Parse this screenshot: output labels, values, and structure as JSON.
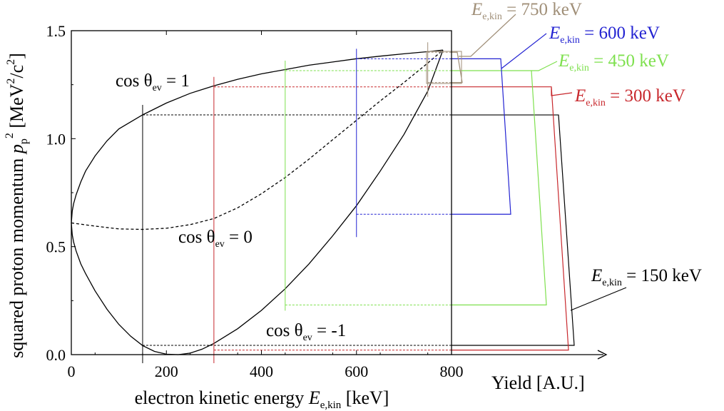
{
  "chart_data": [
    {
      "type": "line",
      "title": "",
      "xlabel_prefix": "electron kinetic energy ",
      "xlabel_var": "E",
      "xlabel_sub": "e,kin",
      "xlabel_unit": " [keV]",
      "ylabel_prefix": "squared proton momentum ",
      "ylabel_var": "p",
      "ylabel_sub": "p",
      "ylabel_sup": "2",
      "ylabel_unit_a": " [MeV",
      "ylabel_unit_b": "/c",
      "ylabel_unit_c": "]",
      "xlim": [
        0,
        800
      ],
      "ylim": [
        0,
        1.5
      ],
      "xticks": [
        0,
        200,
        400,
        600,
        800
      ],
      "yticks": [
        0.0,
        0.5,
        1.0,
        1.5
      ],
      "ytick_labels": [
        "0.0",
        "0.5",
        "1.0",
        "1.5"
      ],
      "grid": false,
      "series": [
        {
          "name": "cos θev = 1",
          "style": "solid",
          "color": "#000000",
          "x": [
            0,
            2,
            5,
            10,
            20,
            30,
            50,
            75,
            100,
            150,
            200,
            250,
            300,
            350,
            400,
            450,
            500,
            550,
            600,
            650,
            700,
            750,
            782
          ],
          "y": [
            0.61,
            0.665,
            0.7,
            0.74,
            0.8,
            0.85,
            0.92,
            0.99,
            1.045,
            1.11,
            1.165,
            1.21,
            1.245,
            1.275,
            1.3,
            1.32,
            1.34,
            1.355,
            1.37,
            1.382,
            1.393,
            1.403,
            1.41
          ]
        },
        {
          "name": "cos θev = 0",
          "style": "dashed",
          "color": "#000000",
          "x": [
            0,
            50,
            100,
            150,
            200,
            250,
            300,
            350,
            400,
            450,
            500,
            550,
            600,
            650,
            700,
            750,
            782
          ],
          "y": [
            0.61,
            0.595,
            0.582,
            0.58,
            0.585,
            0.602,
            0.63,
            0.68,
            0.745,
            0.82,
            0.905,
            0.995,
            1.085,
            1.175,
            1.26,
            1.35,
            1.41
          ]
        },
        {
          "name": "cos θev = -1",
          "style": "solid",
          "color": "#000000",
          "x": [
            0,
            2,
            5,
            10,
            20,
            30,
            50,
            75,
            100,
            125,
            150,
            175,
            200,
            225,
            250,
            275,
            300,
            350,
            400,
            450,
            500,
            550,
            600,
            650,
            700,
            750,
            782
          ],
          "y": [
            0.61,
            0.555,
            0.52,
            0.48,
            0.42,
            0.375,
            0.295,
            0.21,
            0.14,
            0.085,
            0.042,
            0.015,
            0.002,
            0.0,
            0.007,
            0.025,
            0.052,
            0.12,
            0.205,
            0.305,
            0.42,
            0.55,
            0.69,
            0.85,
            1.02,
            1.22,
            1.41
          ]
        }
      ],
      "energy_markers": [
        {
          "label_value": "150 keV",
          "energy": 150,
          "color": "#000000",
          "p_low": 0.043,
          "p_high": 1.11,
          "yield_low_x": 805,
          "yield_high_x": 783
        },
        {
          "label_value": "300 keV",
          "energy": 300,
          "color": "#c8282d",
          "p_low": 0.021,
          "p_high": 1.24,
          "yield_low_x": 797,
          "yield_high_x": 773
        },
        {
          "label_value": "450 keV",
          "energy": 450,
          "color": "#7ee04e",
          "p_low": 0.23,
          "p_high": 1.315,
          "yield_low_x": 766,
          "yield_high_x": 745
        },
        {
          "label_value": "600 keV",
          "energy": 600,
          "color": "#2323d2",
          "p_low": 0.65,
          "p_high": 1.37,
          "yield_low_x": 716,
          "yield_high_x": 702
        },
        {
          "label_value": "750 keV",
          "energy": 750,
          "color": "#a08f78",
          "p_low": 1.26,
          "p_high": 1.4,
          "yield_low_x": 648,
          "yield_high_x": 641
        }
      ],
      "annotations": {
        "cos_prefix": "cos θ",
        "cos_sub": "ev",
        "cos1_suffix": " = 1",
        "cos0_suffix": " = 0",
        "cosm1_suffix": " = -1",
        "e_var": "E",
        "e_sub": "e,kin",
        "e_eq": " = "
      }
    },
    {
      "type": "line",
      "xlabel": "Yield [A.U.]",
      "grid": false
    }
  ],
  "colors": {
    "e150": "#000000",
    "e300": "#c8282d",
    "e450": "#7ee04e",
    "e600": "#2323d2",
    "e750": "#a08f78"
  }
}
